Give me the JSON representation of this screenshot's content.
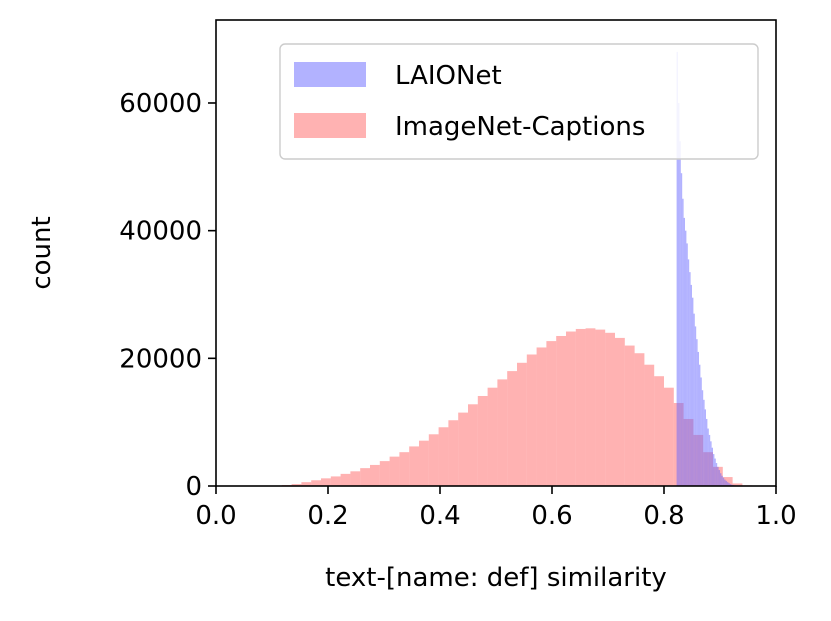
{
  "chart_data": {
    "type": "bar",
    "title": "",
    "xlabel": "text-[name: def] similarity",
    "ylabel": "count",
    "xlim": [
      0.0,
      1.0
    ],
    "ylim": [
      0,
      73000
    ],
    "xticks": [
      "0.0",
      "0.2",
      "0.4",
      "0.6",
      "0.8",
      "1.0"
    ],
    "yticks": [
      "0",
      "20000",
      "40000",
      "60000"
    ],
    "legend_position": "top-right",
    "grid": false,
    "series": [
      {
        "name": "LAIONet",
        "color": "#6666ff",
        "opacity": 0.5,
        "bin_start": 0.8225,
        "bin_width": 0.0025,
        "values": [
          68000,
          60000,
          54000,
          49000,
          45000,
          42000,
          40000,
          38000,
          35500,
          33500,
          31500,
          29500,
          27000,
          25000,
          23000,
          21000,
          19000,
          17000,
          15000,
          13500,
          12000,
          10500,
          9000,
          8000,
          7000,
          6000,
          5000,
          4300,
          3600,
          3000,
          2500,
          2000,
          1600,
          1300,
          1000,
          800,
          600,
          450,
          300,
          200,
          150,
          100,
          60,
          30,
          10,
          0,
          0,
          0,
          0,
          0,
          0,
          0
        ]
      },
      {
        "name": "ImageNet-Captions",
        "color": "#ff6666",
        "opacity": 0.5,
        "bin_start": 0.1,
        "bin_width": 0.0175,
        "values": [
          50,
          150,
          300,
          600,
          900,
          1200,
          1500,
          1900,
          2300,
          2800,
          3300,
          3900,
          4600,
          5300,
          6200,
          7100,
          8100,
          9200,
          10300,
          11500,
          12800,
          14100,
          15400,
          16700,
          18000,
          19300,
          20600,
          21700,
          22700,
          23500,
          24200,
          24600,
          24700,
          24500,
          24000,
          23200,
          22000,
          20800,
          19000,
          17200,
          15400,
          13000,
          10500,
          8000,
          5300,
          3000,
          1400,
          400,
          100
        ]
      }
    ]
  }
}
